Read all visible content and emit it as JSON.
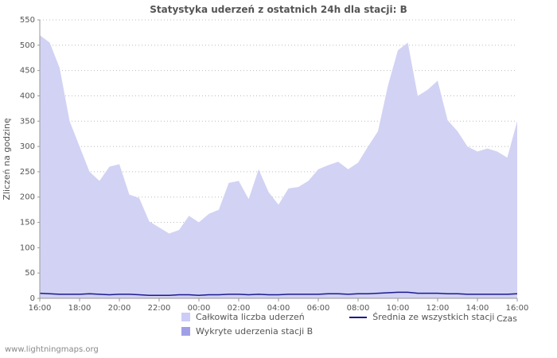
{
  "page": {
    "footer": "www.lightningmaps.org"
  },
  "chart_data": {
    "type": "area",
    "title": "Statystyka uderzeń z ostatnich 24h dla stacji: B",
    "xlabel": "Czas",
    "ylabel": "Zliczeń na godzinę",
    "ylim": [
      0,
      550
    ],
    "yticks": [
      0,
      50,
      100,
      150,
      200,
      250,
      300,
      350,
      400,
      450,
      500,
      550
    ],
    "grid": true,
    "legend_position": "bottom",
    "x": [
      "16:00",
      "16:30",
      "17:00",
      "17:30",
      "18:00",
      "18:30",
      "19:00",
      "19:30",
      "20:00",
      "20:30",
      "21:00",
      "21:30",
      "22:00",
      "22:30",
      "23:00",
      "23:30",
      "00:00",
      "00:30",
      "01:00",
      "01:30",
      "02:00",
      "02:30",
      "03:00",
      "03:30",
      "04:00",
      "04:30",
      "05:00",
      "05:30",
      "06:00",
      "06:30",
      "07:00",
      "07:30",
      "08:00",
      "08:30",
      "09:00",
      "09:30",
      "10:00",
      "10:30",
      "11:00",
      "11:30",
      "12:00",
      "12:30",
      "13:00",
      "13:30",
      "14:00",
      "14:30",
      "15:00",
      "15:30",
      "16:00"
    ],
    "x_tick_every": 4,
    "series": [
      {
        "name": "Całkowita liczba uderzeń",
        "type": "area",
        "color": "#d2d2f4",
        "values": [
          520,
          505,
          455,
          350,
          300,
          250,
          232,
          260,
          265,
          205,
          198,
          152,
          140,
          128,
          135,
          163,
          150,
          167,
          175,
          228,
          232,
          196,
          255,
          210,
          185,
          217,
          220,
          232,
          255,
          263,
          270,
          255,
          268,
          300,
          330,
          420,
          490,
          505,
          400,
          412,
          430,
          352,
          330,
          300,
          290,
          296,
          290,
          278,
          350
        ]
      },
      {
        "name": "Średnia ze wszystkich stacji",
        "type": "line",
        "color": "#1b1b8f",
        "values": [
          10,
          9,
          8,
          8,
          8,
          9,
          8,
          7,
          8,
          8,
          7,
          6,
          6,
          6,
          7,
          7,
          6,
          7,
          7,
          8,
          8,
          7,
          8,
          7,
          7,
          8,
          8,
          8,
          8,
          9,
          9,
          8,
          9,
          9,
          10,
          11,
          12,
          12,
          10,
          10,
          10,
          9,
          9,
          8,
          8,
          8,
          8,
          8,
          9
        ]
      }
    ],
    "legend": [
      {
        "label": "Całkowita liczba uderzeń",
        "type": "area",
        "color": "#ccccf7"
      },
      {
        "label": "Średnia ze wszystkich stacji",
        "type": "line",
        "color": "#1b1b8f"
      },
      {
        "label": "Wykryte uderzenia stacji B",
        "type": "area",
        "color": "#9f9fe8"
      }
    ]
  }
}
